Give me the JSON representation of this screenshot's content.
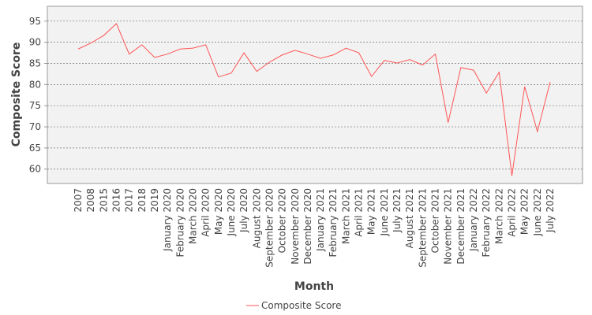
{
  "chart_data": {
    "type": "line",
    "x_label": "Month",
    "y_label": "Composite Score",
    "categories": [
      "2007",
      "2008",
      "2015",
      "2016",
      "2017",
      "2018",
      "2019",
      "January 2020",
      "February 2020",
      "March 2020",
      "April 2020",
      "May 2020",
      "June 2020",
      "July 2020",
      "August 2020",
      "September 2020",
      "October 2020",
      "November 2020",
      "December 2020",
      "January 2021",
      "February 2021",
      "March 2021",
      "April 2021",
      "May 2021",
      "June 2021",
      "July 2021",
      "August 2021",
      "September 2021",
      "October 2021",
      "November 2021",
      "December 2021",
      "January 2022",
      "February 2022",
      "March 2022",
      "April 2022",
      "May 2022",
      "June 2022",
      "July 2022"
    ],
    "series": [
      {
        "name": "Composite Score",
        "color": "#ff5555",
        "values": [
          88.4,
          89.8,
          91.6,
          94.4,
          87.2,
          89.4,
          86.4,
          87.2,
          88.4,
          88.6,
          89.4,
          81.8,
          82.7,
          87.5,
          83.1,
          85.3,
          87.0,
          88.1,
          87.2,
          86.2,
          87.0,
          88.6,
          87.5,
          81.9,
          85.7,
          85.1,
          85.9,
          84.6,
          87.2,
          71.0,
          84.0,
          83.4,
          78.0,
          82.9,
          58.4,
          79.5,
          68.9,
          80.6
        ]
      }
    ],
    "ylim": [
      56.6,
      98.5
    ],
    "yticks": [
      60,
      65,
      70,
      75,
      80,
      85,
      90,
      95
    ],
    "grid": true
  }
}
